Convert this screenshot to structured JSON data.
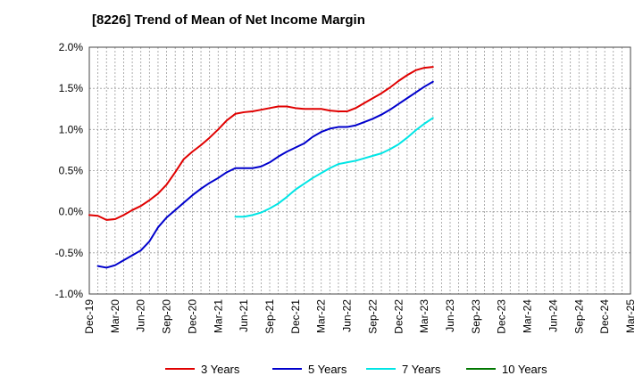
{
  "chart_data": {
    "type": "line",
    "title": "[8226]  Trend of Mean of Net Income Margin",
    "xlabel": "",
    "ylabel": "",
    "x_ticks": [
      "Dec-19",
      "Mar-20",
      "Jun-20",
      "Sep-20",
      "Dec-20",
      "Mar-21",
      "Jun-21",
      "Sep-21",
      "Dec-21",
      "Mar-22",
      "Jun-22",
      "Sep-22",
      "Dec-22",
      "Mar-23",
      "Jun-23",
      "Sep-23",
      "Dec-23",
      "Mar-24",
      "Jun-24",
      "Sep-24",
      "Dec-24",
      "Mar-25"
    ],
    "y_ticks": [
      "2.0%",
      "1.5%",
      "1.0%",
      "0.5%",
      "0.0%",
      "-0.5%",
      "-1.0%"
    ],
    "ylim": [
      -1.0,
      2.0
    ],
    "y_unit": "%",
    "grid": true,
    "legend_position": "bottom",
    "series": [
      {
        "name": "3 Years",
        "color": "#e00000",
        "start_index": 0,
        "values": [
          -0.04,
          -0.05,
          -0.1,
          -0.09,
          -0.04,
          0.02,
          0.07,
          0.14,
          0.22,
          0.33,
          0.48,
          0.64,
          0.73,
          0.81,
          0.9,
          1.0,
          1.11,
          1.19,
          1.21,
          1.22,
          1.24,
          1.26,
          1.28,
          1.28,
          1.26,
          1.25,
          1.25,
          1.25,
          1.23,
          1.22,
          1.22,
          1.26,
          1.32,
          1.38,
          1.44,
          1.51,
          1.59,
          1.66,
          1.72,
          1.75,
          1.76
        ]
      },
      {
        "name": "5 Years",
        "color": "#0000cc",
        "start_index": 1,
        "values": [
          -0.66,
          -0.68,
          -0.65,
          -0.59,
          -0.53,
          -0.47,
          -0.36,
          -0.19,
          -0.07,
          0.02,
          0.11,
          0.2,
          0.28,
          0.35,
          0.41,
          0.48,
          0.53,
          0.53,
          0.53,
          0.55,
          0.6,
          0.67,
          0.73,
          0.78,
          0.83,
          0.91,
          0.97,
          1.01,
          1.03,
          1.03,
          1.05,
          1.09,
          1.13,
          1.18,
          1.24,
          1.31,
          1.38,
          1.45,
          1.52,
          1.58
        ]
      },
      {
        "name": "7 Years",
        "color": "#00e5e5",
        "start_index": 17,
        "values": [
          -0.06,
          -0.06,
          -0.04,
          -0.01,
          0.04,
          0.1,
          0.18,
          0.27,
          0.34,
          0.41,
          0.47,
          0.53,
          0.58,
          0.6,
          0.62,
          0.65,
          0.68,
          0.71,
          0.76,
          0.82,
          0.9,
          0.99,
          1.07,
          1.14
        ]
      },
      {
        "name": "10 Years",
        "color": "#007700",
        "start_index": 0,
        "values": []
      }
    ]
  }
}
